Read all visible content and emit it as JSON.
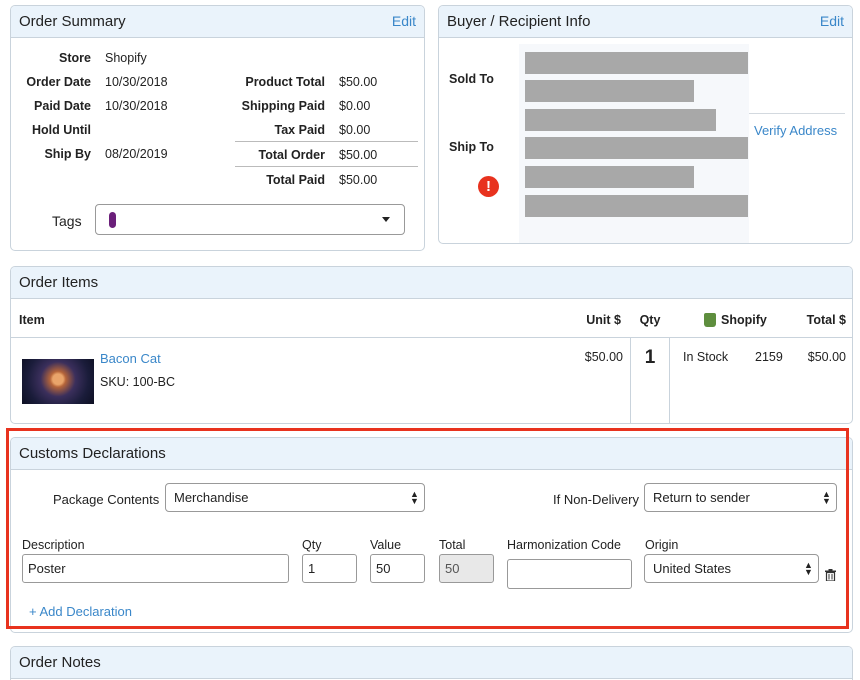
{
  "order_summary": {
    "title": "Order Summary",
    "edit": "Edit",
    "left_rows": [
      {
        "label": "Store",
        "value": "Shopify"
      },
      {
        "label": "Order Date",
        "value": "10/30/2018"
      },
      {
        "label": "Paid Date",
        "value": "10/30/2018"
      },
      {
        "label": "Hold Until",
        "value": ""
      },
      {
        "label": "Ship By",
        "value": "08/20/2019"
      }
    ],
    "right_rows": [
      {
        "label": "Product Total",
        "value": "$50.00"
      },
      {
        "label": "Shipping Paid",
        "value": "$0.00"
      },
      {
        "label": "Tax Paid",
        "value": "$0.00"
      },
      {
        "label": "Total Order",
        "value": "$50.00"
      },
      {
        "label": "Total Paid",
        "value": "$50.00"
      }
    ],
    "tags_label": "Tags",
    "tag_color": "#6b1f7a"
  },
  "buyer": {
    "title": "Buyer / Recipient Info",
    "edit": "Edit",
    "sold_to": "Sold To",
    "ship_to": "Ship To",
    "verify": "Verify Address",
    "alert_color": "#e8321e"
  },
  "order_items": {
    "title": "Order Items",
    "headers": {
      "item": "Item",
      "unit": "Unit $",
      "qty": "Qty",
      "store": "Shopify",
      "total": "Total $"
    },
    "item": {
      "name": "Bacon Cat",
      "sku": "SKU: 100-BC",
      "unit": "$50.00",
      "qty": "1",
      "stock": "In Stock",
      "store_qty": "2159",
      "total": "$50.00"
    }
  },
  "customs": {
    "title": "Customs Declarations",
    "package_label": "Package Contents",
    "package_value": "Merchandise",
    "nondelivery_label": "If Non-Delivery",
    "nondelivery_value": "Return to sender",
    "cols": {
      "description": "Description",
      "qty": "Qty",
      "value": "Value",
      "total": "Total",
      "hcode": "Harmonization Code",
      "origin": "Origin"
    },
    "row": {
      "description": "Poster",
      "qty": "1",
      "value": "50",
      "total": "50",
      "hcode": "",
      "origin": "United States"
    },
    "add": "+ Add Declaration",
    "highlight_color": "#e8321e"
  },
  "order_notes": {
    "title": "Order Notes"
  }
}
